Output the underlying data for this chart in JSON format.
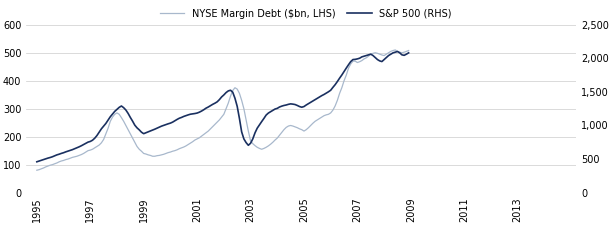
{
  "legend_labels": [
    "NYSE Margin Debt ($bn, LHS)",
    "S&P 500 (RHS)"
  ],
  "line1_color": "#a8b8cc",
  "line2_color": "#1a3060",
  "lhs_ylim": [
    0,
    600
  ],
  "rhs_ylim": [
    0,
    2500
  ],
  "lhs_yticks": [
    0,
    100,
    200,
    300,
    400,
    500,
    600
  ],
  "rhs_yticks": [
    0,
    500,
    1000,
    1500,
    2000,
    2500
  ],
  "xtick_years": [
    1995,
    1997,
    1999,
    2001,
    2003,
    2005,
    2007,
    2009,
    2011,
    2013
  ],
  "background_color": "#ffffff",
  "grid_color": "#cccccc",
  "margin_debt": [
    80,
    82,
    85,
    88,
    92,
    95,
    98,
    100,
    103,
    106,
    110,
    113,
    115,
    118,
    120,
    123,
    126,
    128,
    130,
    133,
    136,
    140,
    145,
    150,
    152,
    155,
    160,
    165,
    170,
    178,
    190,
    210,
    230,
    255,
    270,
    280,
    285,
    280,
    268,
    255,
    240,
    225,
    210,
    195,
    180,
    165,
    155,
    148,
    140,
    138,
    135,
    133,
    130,
    130,
    132,
    133,
    135,
    137,
    140,
    143,
    145,
    148,
    150,
    153,
    157,
    160,
    163,
    167,
    172,
    177,
    182,
    188,
    192,
    196,
    202,
    208,
    214,
    220,
    228,
    236,
    244,
    252,
    260,
    270,
    280,
    300,
    320,
    345,
    365,
    375,
    370,
    355,
    330,
    300,
    260,
    220,
    185,
    175,
    168,
    162,
    158,
    155,
    158,
    162,
    167,
    173,
    180,
    188,
    195,
    205,
    215,
    225,
    233,
    238,
    240,
    238,
    235,
    232,
    228,
    225,
    220,
    225,
    232,
    240,
    248,
    255,
    260,
    265,
    270,
    275,
    278,
    280,
    285,
    295,
    310,
    330,
    355,
    375,
    400,
    420,
    445,
    460,
    470,
    470,
    465,
    468,
    472,
    478,
    482,
    488,
    495,
    498,
    500,
    498,
    495,
    492,
    490,
    495,
    500,
    505,
    508,
    510,
    505,
    502,
    500,
    502,
    505,
    508
  ],
  "sp500": [
    459,
    470,
    480,
    492,
    504,
    514,
    523,
    534,
    548,
    562,
    572,
    584,
    594,
    607,
    618,
    628,
    640,
    654,
    667,
    682,
    698,
    716,
    734,
    752,
    762,
    780,
    810,
    850,
    900,
    950,
    990,
    1030,
    1080,
    1130,
    1170,
    1210,
    1240,
    1270,
    1290,
    1265,
    1230,
    1180,
    1120,
    1065,
    1005,
    965,
    935,
    900,
    878,
    892,
    905,
    918,
    932,
    945,
    960,
    975,
    990,
    1002,
    1015,
    1025,
    1035,
    1050,
    1070,
    1090,
    1108,
    1120,
    1135,
    1147,
    1158,
    1168,
    1173,
    1178,
    1185,
    1198,
    1215,
    1235,
    1258,
    1275,
    1295,
    1315,
    1332,
    1352,
    1385,
    1425,
    1455,
    1490,
    1515,
    1525,
    1495,
    1405,
    1285,
    1105,
    905,
    800,
    745,
    705,
    735,
    800,
    890,
    960,
    1010,
    1058,
    1105,
    1155,
    1185,
    1205,
    1225,
    1245,
    1255,
    1275,
    1288,
    1298,
    1305,
    1315,
    1322,
    1318,
    1312,
    1298,
    1282,
    1272,
    1282,
    1305,
    1325,
    1345,
    1365,
    1385,
    1405,
    1425,
    1445,
    1462,
    1482,
    1502,
    1525,
    1568,
    1608,
    1655,
    1705,
    1752,
    1805,
    1855,
    1905,
    1952,
    1982,
    1985,
    1992,
    2002,
    2022,
    2032,
    2042,
    2052,
    2062,
    2042,
    2012,
    1982,
    1962,
    1952,
    1982,
    2012,
    2042,
    2062,
    2082,
    2092,
    2102,
    2082,
    2052,
    2045,
    2062,
    2082
  ]
}
